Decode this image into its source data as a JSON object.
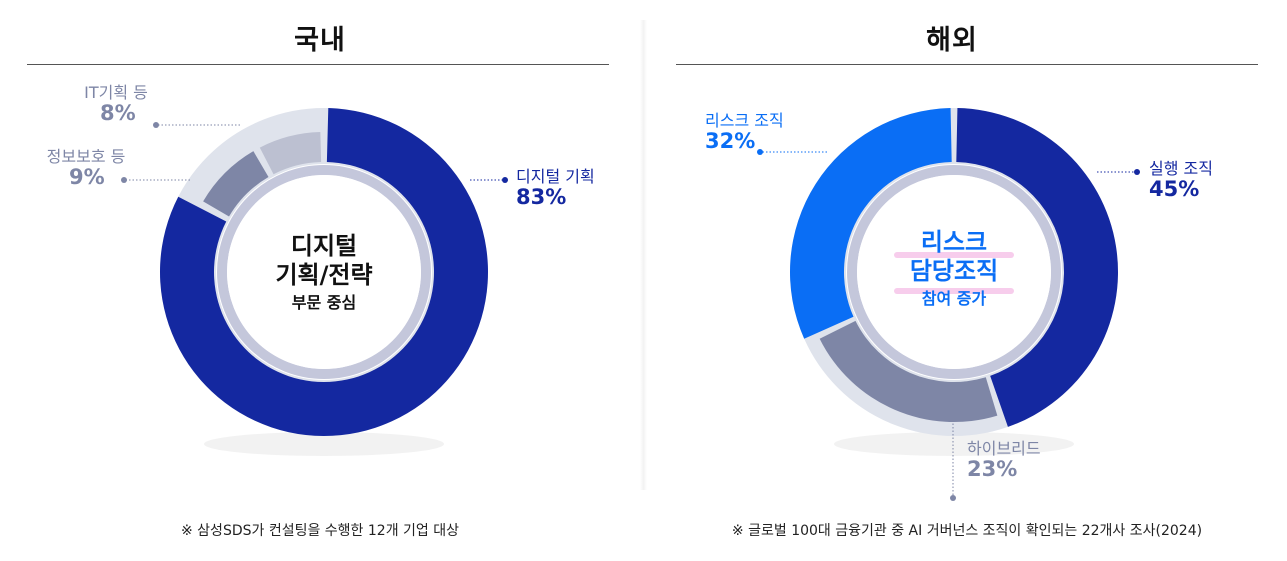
{
  "left": {
    "title": "국내",
    "center": {
      "line1": "디지털",
      "line2": "기획/전략",
      "line3": "부문 중심"
    },
    "note": "※ 삼성SDS가 컨설팅을 수행한 12개 기업 대상"
  },
  "right": {
    "title": "해외",
    "center": {
      "line1": "리스크",
      "line2": "담당조직",
      "line3": "참여 증가"
    },
    "note": "※ 글로벌 100대 금융기관 중 AI 거버넌스 조직이 확인되는 22개사 조사(2024)"
  },
  "chart_data": [
    {
      "type": "pie",
      "title": "국내",
      "categories": [
        "디지털 기획",
        "정보보호 등",
        "IT기획 등"
      ],
      "values": [
        83,
        9,
        8
      ],
      "value_labels": [
        "83%",
        "9%",
        "8%"
      ],
      "colors": [
        "#1428a0",
        "#7e86a6",
        "#bcc0d1"
      ]
    },
    {
      "type": "pie",
      "title": "해외",
      "categories": [
        "실행 조직",
        "하이브리드",
        "리스크 조직"
      ],
      "values": [
        45,
        23,
        32
      ],
      "value_labels": [
        "45%",
        "23%",
        "32%"
      ],
      "colors": [
        "#1428a0",
        "#7e86a6",
        "#0a6ef5"
      ]
    }
  ]
}
